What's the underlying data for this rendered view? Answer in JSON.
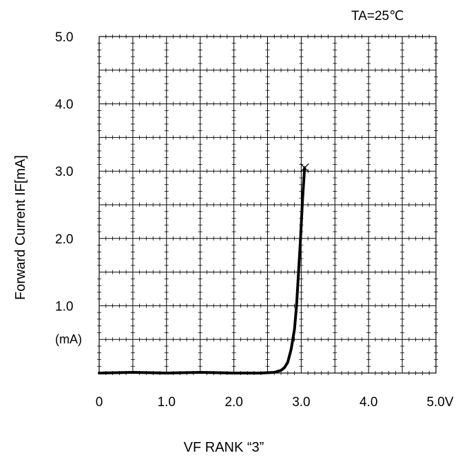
{
  "chart_data": {
    "type": "line",
    "condition": "TA=25℃",
    "ylabel": "Forward Current IF[mA]",
    "xlabel": "VF RANK “3”",
    "y_unit_label": "(mA)",
    "xlim": [
      0,
      5.0
    ],
    "ylim": [
      0,
      5.0
    ],
    "grid": true,
    "x_ticks": [
      {
        "value": 0,
        "label": "0"
      },
      {
        "value": 1.0,
        "label": "1.0"
      },
      {
        "value": 2.0,
        "label": "2.0"
      },
      {
        "value": 3.0,
        "label": "3.0"
      },
      {
        "value": 4.0,
        "label": "4.0"
      },
      {
        "value": 5.0,
        "label": "5.0V"
      }
    ],
    "y_ticks": [
      {
        "value": 1.0,
        "label": "1.0"
      },
      {
        "value": 2.0,
        "label": "2.0"
      },
      {
        "value": 3.0,
        "label": "3.0"
      },
      {
        "value": 4.0,
        "label": "4.0"
      },
      {
        "value": 5.0,
        "label": "5.0"
      }
    ],
    "series": [
      {
        "x": [
          0,
          0.5,
          1.0,
          1.5,
          2.0,
          2.4,
          2.6,
          2.7,
          2.75,
          2.8,
          2.85,
          2.9,
          2.93,
          2.96,
          2.99,
          3.02,
          3.05
        ],
        "y": [
          0,
          0.01,
          0,
          0.01,
          0,
          0,
          0.01,
          0.04,
          0.08,
          0.16,
          0.35,
          0.65,
          1.0,
          1.5,
          2.0,
          2.6,
          3.05
        ]
      }
    ],
    "end_marker": {
      "x": 3.05,
      "y": 3.05,
      "symbol": "x"
    }
  }
}
